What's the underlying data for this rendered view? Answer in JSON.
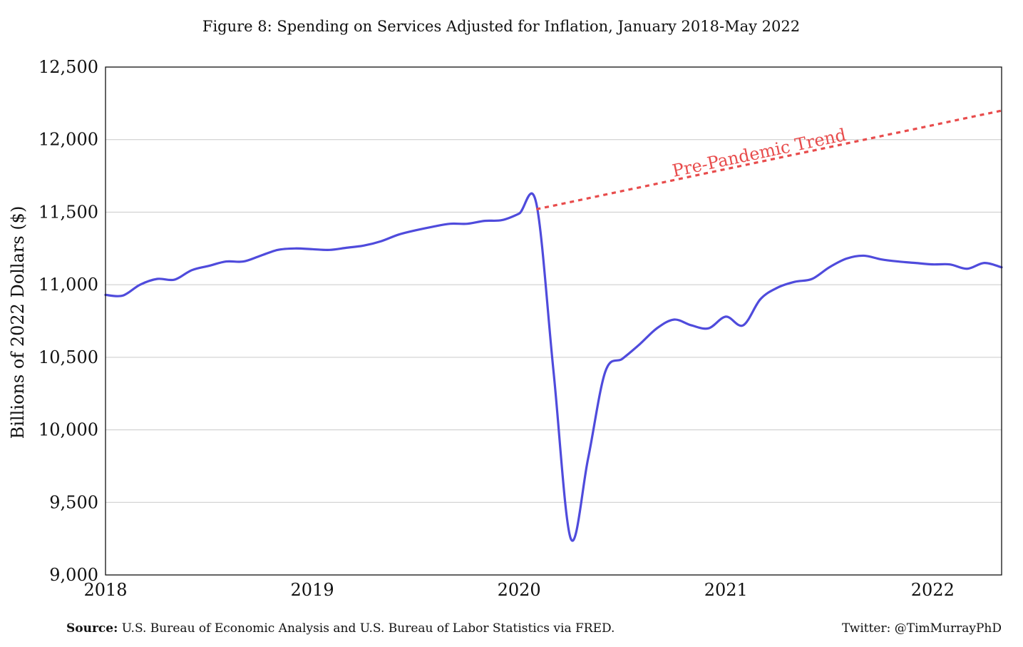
{
  "chart_data": {
    "type": "line",
    "title": "Figure 8: Spending on Services Adjusted for Inflation, January 2018-May 2022",
    "ylabel": "Billions of 2022 Dollars ($)",
    "xlabel": "",
    "xlim": [
      "2018-01",
      "2022-05"
    ],
    "ylim": [
      9000,
      12500
    ],
    "yticks": [
      9000,
      9500,
      10000,
      10500,
      11000,
      11500,
      12000,
      12500
    ],
    "ytick_labels": [
      "9,000",
      "9,500",
      "10,000",
      "10,500",
      "11,000",
      "11,500",
      "12,000",
      "12,500"
    ],
    "xticks": [
      "2018-01",
      "2019-01",
      "2020-01",
      "2021-01",
      "2022-01"
    ],
    "xtick_labels": [
      "2018",
      "2019",
      "2020",
      "2021",
      "2022"
    ],
    "grid": "horizontal",
    "series": [
      {
        "color": "#4f4bdc",
        "style": "solid",
        "x": [
          "2018-01",
          "2018-02",
          "2018-03",
          "2018-04",
          "2018-05",
          "2018-06",
          "2018-07",
          "2018-08",
          "2018-09",
          "2018-10",
          "2018-11",
          "2018-12",
          "2019-01",
          "2019-02",
          "2019-03",
          "2019-04",
          "2019-05",
          "2019-06",
          "2019-07",
          "2019-08",
          "2019-09",
          "2019-10",
          "2019-11",
          "2019-12",
          "2020-01",
          "2020-02",
          "2020-03",
          "2020-04",
          "2020-05",
          "2020-06",
          "2020-07",
          "2020-08",
          "2020-09",
          "2020-10",
          "2020-11",
          "2020-12",
          "2021-01",
          "2021-02",
          "2021-03",
          "2021-04",
          "2021-05",
          "2021-06",
          "2021-07",
          "2021-08",
          "2021-09",
          "2021-10",
          "2021-11",
          "2021-12",
          "2022-01",
          "2022-02",
          "2022-03",
          "2022-04",
          "2022-05"
        ],
        "values": [
          10930,
          10925,
          11000,
          11040,
          11035,
          11100,
          11130,
          11160,
          11160,
          11200,
          11240,
          11250,
          11245,
          11240,
          11255,
          11270,
          11300,
          11345,
          11375,
          11400,
          11420,
          11420,
          11440,
          11445,
          11490,
          11560,
          10400,
          9250,
          9800,
          10400,
          10490,
          10590,
          10700,
          10760,
          10720,
          10700,
          10780,
          10720,
          10900,
          10980,
          11020,
          11040,
          11120,
          11180,
          11200,
          11175,
          11160,
          11150,
          11140,
          11140,
          11110,
          11150,
          11120
        ]
      },
      {
        "name": "Pre-Pandemic Trend",
        "color": "#e84c4c",
        "style": "dotted",
        "x": [
          "2020-02",
          "2022-05"
        ],
        "values": [
          11520,
          12200
        ]
      }
    ],
    "annotations": [
      {
        "text": "Pre-Pandemic Trend",
        "color": "#e84c4c",
        "x": "2021-03",
        "y": 11870
      }
    ]
  },
  "footer": {
    "source_label": "Source:",
    "source_text": "U.S. Bureau of Economic Analysis and U.S. Bureau of Labor Statistics via FRED.",
    "credit": "Twitter: @TimMurrayPhD"
  }
}
